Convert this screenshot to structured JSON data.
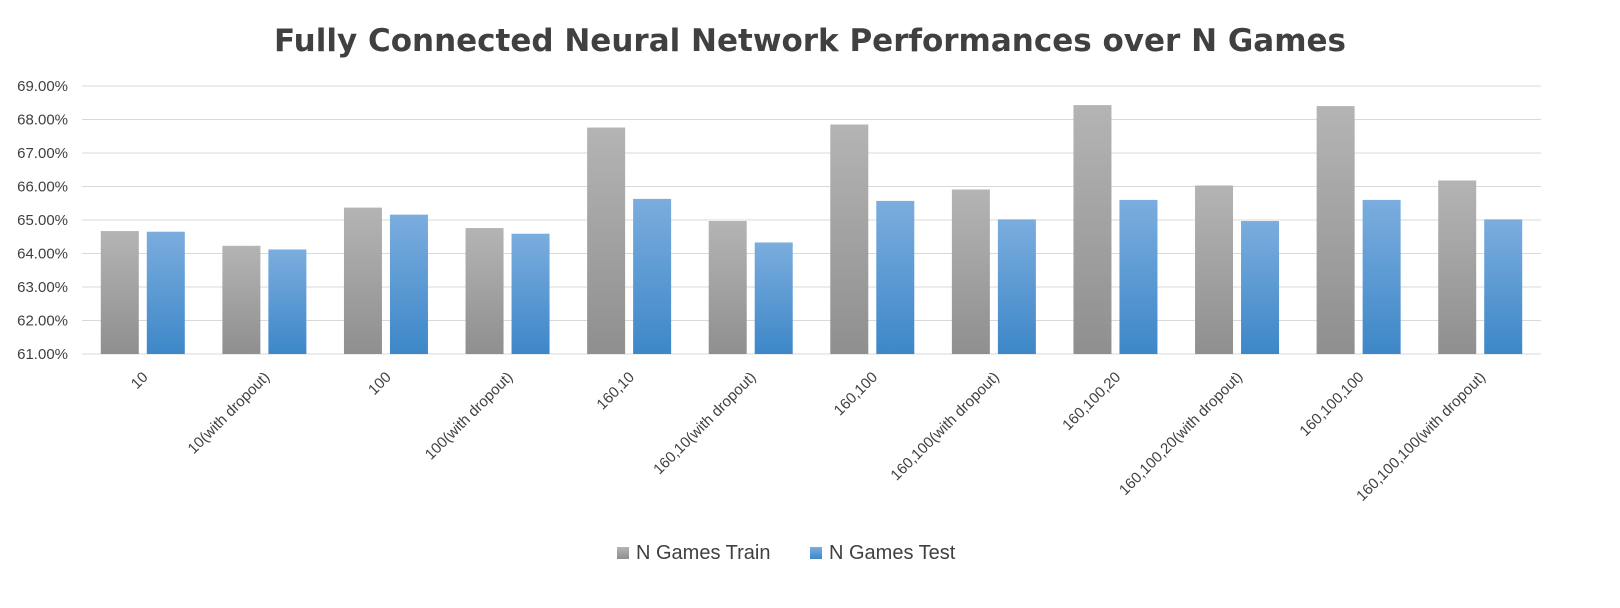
{
  "chart_data": {
    "type": "bar",
    "title": "Fully Connected Neural Network Performances over N Games",
    "xlabel": "",
    "ylabel": "",
    "ylim": [
      61.0,
      69.0
    ],
    "ytick_step": 1.0,
    "ytick_format": "percent-2dp",
    "grid": true,
    "legend_position": "bottom",
    "categories": [
      "10",
      "10(with dropout)",
      "100",
      "100(with dropout)",
      "160,10",
      "160,10(with dropout)",
      "160,100",
      "160,100(with dropout)",
      "160,100,20",
      "160,100,20(with dropout)",
      "160,100,100",
      "160,100,100(with dropout)"
    ],
    "series": [
      {
        "name": "N Games Train",
        "color": "#a6a6a6",
        "values": [
          64.67,
          64.23,
          65.37,
          64.76,
          67.76,
          64.97,
          67.85,
          65.91,
          68.43,
          66.03,
          68.4,
          66.18
        ]
      },
      {
        "name": "N Games Test",
        "color": "#5b9bd5",
        "values": [
          64.65,
          64.12,
          65.16,
          64.59,
          65.63,
          64.33,
          65.57,
          65.02,
          65.6,
          64.97,
          65.6,
          65.02
        ]
      }
    ]
  }
}
